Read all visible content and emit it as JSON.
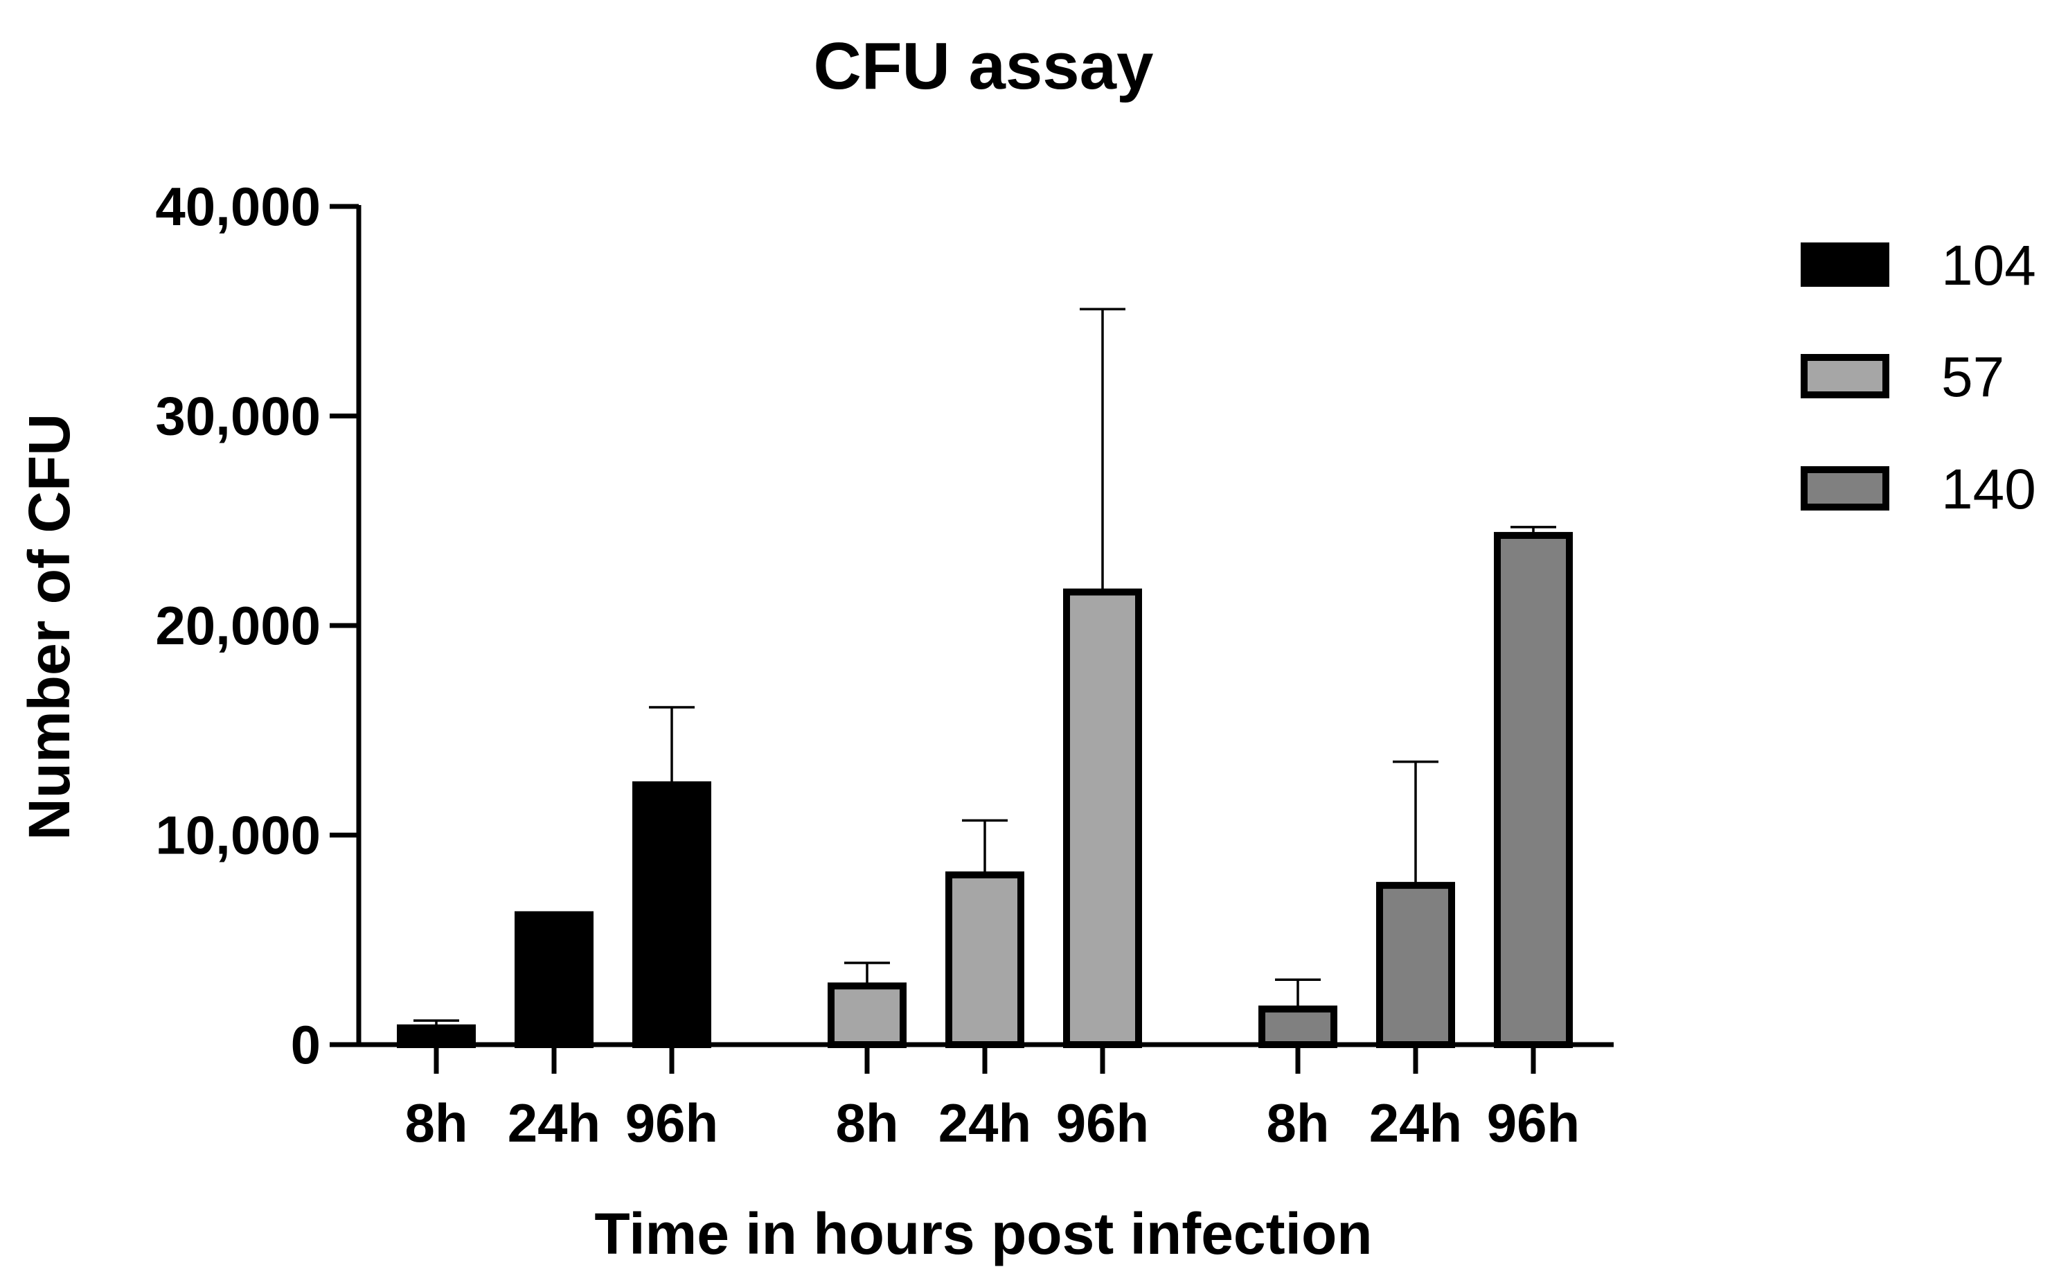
{
  "chart_data": {
    "type": "bar",
    "title": "CFU assay",
    "xlabel": "Time in hours post infection",
    "ylabel": "Number of CFU",
    "ylim": [
      0,
      40000
    ],
    "yticks": [
      0,
      10000,
      20000,
      30000,
      40000
    ],
    "ytick_labels": [
      "0",
      "10,000",
      "20,000",
      "30,000",
      "40,000"
    ],
    "categories": [
      "8h",
      "24h",
      "96h"
    ],
    "grid": false,
    "legend": "right",
    "series": [
      {
        "name": "104",
        "color": "#000000",
        "values": [
          800,
          6200,
          12400
        ],
        "errors": [
          350,
          0,
          3700
        ]
      },
      {
        "name": "57",
        "color": "#a6a6a6",
        "values": [
          2800,
          8100,
          21600
        ],
        "errors": [
          1100,
          2600,
          13500
        ]
      },
      {
        "name": "140",
        "color": "#808080",
        "values": [
          1700,
          7600,
          24300
        ],
        "errors": [
          1400,
          5900,
          400
        ]
      }
    ]
  }
}
